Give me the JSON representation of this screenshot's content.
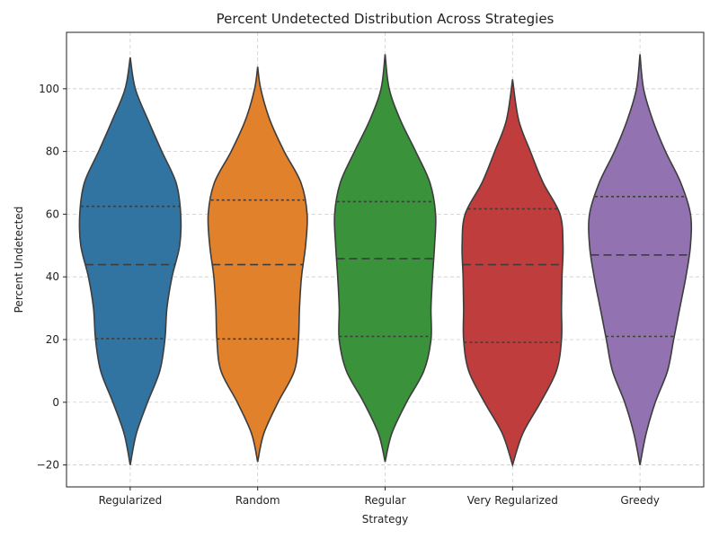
{
  "chart_data": {
    "type": "violin",
    "title": "Percent Undetected Distribution Across Strategies",
    "xlabel": "Strategy",
    "ylabel": "Percent Undetected",
    "ylim": [
      -27,
      118
    ],
    "yticks": [
      -20,
      0,
      20,
      40,
      60,
      80,
      100
    ],
    "grid": true,
    "inner": "quartile",
    "categories": [
      "Regularized",
      "Random",
      "Regular",
      "Very Regularized",
      "Greedy"
    ],
    "colors": [
      "#3274a1",
      "#e1812c",
      "#3a923a",
      "#c03d3e",
      "#9372b2"
    ],
    "series": [
      {
        "name": "Regularized",
        "extent": [
          -20,
          110
        ],
        "quartiles": [
          20.3,
          43.9,
          62.5
        ],
        "density_y": [
          -20,
          -10,
          0,
          10,
          20,
          30,
          40,
          50,
          60,
          70,
          80,
          90,
          100,
          110
        ],
        "density_w": [
          0.01,
          0.12,
          0.34,
          0.58,
          0.68,
          0.72,
          0.82,
          0.97,
          0.99,
          0.9,
          0.62,
          0.35,
          0.1,
          0.01
        ]
      },
      {
        "name": "Random",
        "extent": [
          -19,
          107
        ],
        "quartiles": [
          20.2,
          43.9,
          64.5
        ],
        "density_y": [
          -19,
          -10,
          0,
          10,
          20,
          30,
          40,
          50,
          60,
          70,
          80,
          90,
          100,
          107
        ],
        "density_w": [
          0.01,
          0.12,
          0.4,
          0.72,
          0.8,
          0.82,
          0.86,
          0.94,
          0.97,
          0.85,
          0.52,
          0.24,
          0.06,
          0.01
        ]
      },
      {
        "name": "Regular",
        "extent": [
          -19,
          111
        ],
        "quartiles": [
          21.0,
          45.8,
          64.0
        ],
        "density_y": [
          -19,
          -10,
          0,
          10,
          20,
          30,
          40,
          50,
          60,
          70,
          80,
          90,
          100,
          111
        ],
        "density_w": [
          0.01,
          0.13,
          0.42,
          0.76,
          0.9,
          0.9,
          0.93,
          0.97,
          0.99,
          0.88,
          0.6,
          0.3,
          0.08,
          0.01
        ]
      },
      {
        "name": "Very Regularized",
        "extent": [
          -20,
          103
        ],
        "quartiles": [
          19.1,
          43.9,
          61.7
        ],
        "density_y": [
          -20,
          -10,
          0,
          10,
          20,
          30,
          40,
          50,
          60,
          70,
          80,
          90,
          103
        ],
        "density_w": [
          0.01,
          0.2,
          0.55,
          0.86,
          0.96,
          0.96,
          0.97,
          0.99,
          0.93,
          0.6,
          0.35,
          0.12,
          0.01
        ]
      },
      {
        "name": "Greedy",
        "extent": [
          -20,
          111
        ],
        "quartiles": [
          21.0,
          47.0,
          65.6
        ],
        "density_y": [
          -20,
          -10,
          0,
          10,
          20,
          30,
          40,
          50,
          60,
          70,
          80,
          90,
          100,
          111
        ],
        "density_w": [
          0.01,
          0.12,
          0.3,
          0.54,
          0.66,
          0.78,
          0.9,
          0.99,
          0.99,
          0.8,
          0.5,
          0.25,
          0.07,
          0.01
        ]
      }
    ]
  }
}
